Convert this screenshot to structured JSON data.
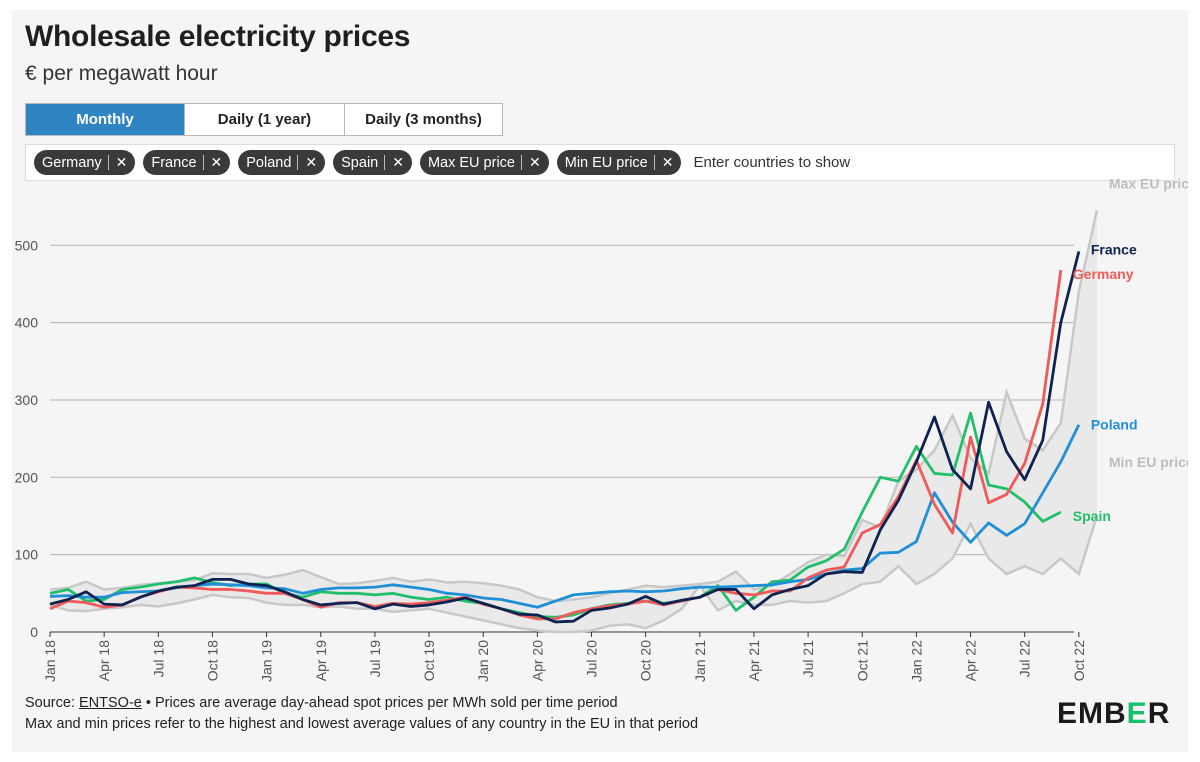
{
  "title": "Wholesale electricity prices",
  "subtitle": "€ per megawatt hour",
  "tabs": [
    {
      "label": "Monthly",
      "active": true
    },
    {
      "label": "Daily (1 year)",
      "active": false
    },
    {
      "label": "Daily (3 months)",
      "active": false
    }
  ],
  "filter": {
    "chips": [
      "Germany",
      "France",
      "Poland",
      "Spain",
      "Max EU price",
      "Min EU price"
    ],
    "remove_glyph": "✕",
    "placeholder": "Enter countries to show"
  },
  "source": {
    "prefix": "Source: ",
    "link_text": "ENTSO-e",
    "suffix": " • Prices are average day-ahead spot prices per MWh sold per time period",
    "note": "Max and min prices refer to the highest and lowest average values of any country in the EU in that period"
  },
  "logo": {
    "prefix": "EMB",
    "accent": "E",
    "suffix": "R"
  },
  "colors": {
    "accent": "#2e85c2",
    "france": "#0f2350",
    "germany": "#f05a5a",
    "poland": "#1f8fd6",
    "spain": "#22bf6b",
    "band": "#c8c8c8"
  },
  "chart_data": {
    "type": "line",
    "title": "Wholesale electricity prices",
    "ylabel": "€ per megawatt hour",
    "ylim": [
      0,
      550
    ],
    "yticks": [
      0,
      100,
      200,
      300,
      400,
      500
    ],
    "x_start": "Jan 18",
    "x_tick_labels": [
      "Jan 18",
      "Apr 18",
      "Jul 18",
      "Oct 18",
      "Jan 19",
      "Apr 19",
      "Jul 19",
      "Oct 19",
      "Jan 20",
      "Apr 20",
      "Jul 20",
      "Oct 20",
      "Jan 21",
      "Apr 21",
      "Jul 21",
      "Oct 21",
      "Jan 22",
      "Apr 22",
      "Jul 22",
      "Oct 22"
    ],
    "series": [
      {
        "name": "Max EU price",
        "role": "band-max",
        "values": [
          55,
          57,
          65,
          55,
          57,
          61,
          63,
          65,
          67,
          76,
          75,
          75,
          70,
          74,
          80,
          71,
          62,
          63,
          66,
          70,
          65,
          68,
          64,
          65,
          63,
          60,
          55,
          45,
          40,
          42,
          45,
          50,
          55,
          60,
          58,
          60,
          62,
          65,
          78,
          55,
          60,
          75,
          90,
          100,
          98,
          145,
          135,
          195,
          210,
          235,
          280,
          225,
          205,
          310,
          250,
          235,
          270,
          440,
          545
        ]
      },
      {
        "name": "France",
        "values": [
          36,
          42,
          52,
          36,
          35,
          45,
          53,
          58,
          60,
          68,
          68,
          62,
          60,
          52,
          42,
          35,
          37,
          38,
          30,
          36,
          33,
          35,
          39,
          44,
          37,
          30,
          23,
          22,
          13,
          14,
          28,
          31,
          36,
          46,
          36,
          41,
          45,
          55,
          55,
          30,
          48,
          55,
          60,
          75,
          78,
          77,
          132,
          170,
          220,
          278,
          210,
          185,
          297,
          233,
          197,
          248,
          400,
          492
        ]
      },
      {
        "name": "Germany",
        "values": [
          30,
          40,
          38,
          32,
          35,
          45,
          52,
          58,
          57,
          55,
          55,
          53,
          50,
          50,
          42,
          32,
          38,
          38,
          33,
          37,
          36,
          38,
          41,
          45,
          36,
          30,
          22,
          17,
          17,
          25,
          30,
          34,
          36,
          40,
          35,
          40,
          45,
          55,
          50,
          48,
          53,
          53,
          70,
          80,
          84,
          128,
          139,
          175,
          222,
          165,
          128,
          252,
          167,
          178,
          218,
          295,
          468
        ]
      },
      {
        "name": "Poland",
        "values": [
          46,
          47,
          45,
          45,
          51,
          52,
          53,
          57,
          60,
          62,
          61,
          60,
          57,
          56,
          50,
          55,
          57,
          57,
          58,
          61,
          58,
          55,
          50,
          48,
          44,
          42,
          37,
          32,
          40,
          48,
          50,
          52,
          53,
          52,
          53,
          56,
          58,
          58,
          59,
          60,
          61,
          65,
          68,
          75,
          80,
          82,
          102,
          103,
          117,
          180,
          142,
          116,
          141,
          125,
          140,
          180,
          220,
          268
        ]
      },
      {
        "name": "Spain",
        "values": [
          50,
          55,
          40,
          42,
          55,
          58,
          62,
          65,
          70,
          64,
          60,
          62,
          62,
          50,
          45,
          52,
          50,
          50,
          48,
          50,
          45,
          42,
          45,
          40,
          37,
          30,
          25,
          20,
          19,
          22,
          30,
          35,
          37,
          40,
          37,
          40,
          45,
          60,
          28,
          45,
          65,
          67,
          84,
          92,
          107,
          155,
          200,
          195,
          240,
          205,
          203,
          283,
          190,
          185,
          168,
          143,
          155
        ]
      },
      {
        "name": "Min EU price",
        "role": "band-min",
        "values": [
          35,
          28,
          27,
          30,
          32,
          35,
          33,
          37,
          42,
          48,
          45,
          44,
          38,
          35,
          35,
          32,
          33,
          30,
          30,
          26,
          28,
          30,
          25,
          20,
          15,
          10,
          5,
          2,
          0,
          0,
          2,
          8,
          10,
          5,
          15,
          30,
          60,
          28,
          40,
          35,
          35,
          40,
          38,
          40,
          50,
          62,
          65,
          85,
          62,
          75,
          95,
          140,
          95,
          75,
          85,
          75,
          95,
          75,
          150
        ]
      }
    ]
  }
}
